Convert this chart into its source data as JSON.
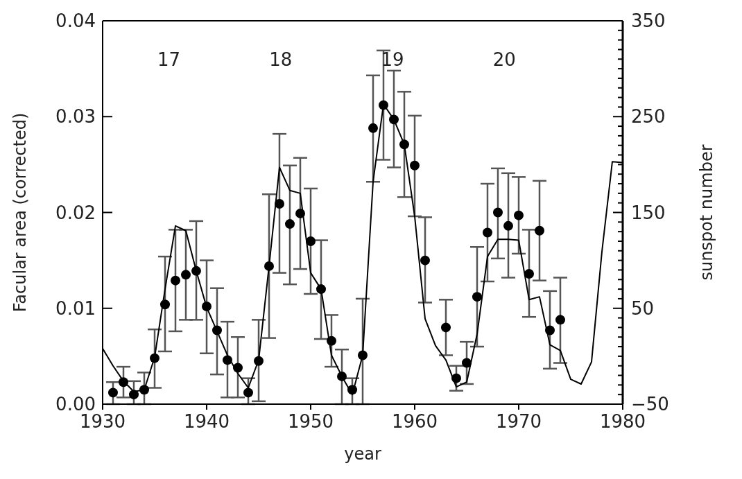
{
  "chart_data": {
    "type": "scatter",
    "xlabel": "year",
    "ylabel": "Facular area (corrected)",
    "y2label": "sunspot number",
    "xlim": [
      1930,
      1980
    ],
    "xticks": [
      1930,
      1940,
      1950,
      1960,
      1970,
      1980
    ],
    "ylim": [
      0,
      0.04
    ],
    "yticks": [
      {
        "value": 0,
        "label": "0.00"
      },
      {
        "value": 0.01,
        "label": "0.01"
      },
      {
        "value": 0.02,
        "label": "0.02"
      },
      {
        "value": 0.03,
        "label": "0.03"
      },
      {
        "value": 0.04,
        "label": "0.04"
      }
    ],
    "y2lim": [
      -50,
      350
    ],
    "y2ticks": [
      {
        "value": -50,
        "label": "−50"
      },
      {
        "value": -40,
        "label": null
      },
      {
        "value": -30,
        "label": null
      },
      {
        "value": -20,
        "label": null
      },
      {
        "value": -10,
        "label": null
      },
      {
        "value": 0,
        "label": null
      },
      {
        "value": 10,
        "label": null
      },
      {
        "value": 20,
        "label": null
      },
      {
        "value": 30,
        "label": null
      },
      {
        "value": 40,
        "label": null
      },
      50,
      {
        "value": 60,
        "label": null
      },
      {
        "value": 70,
        "label": null
      },
      {
        "value": 80,
        "label": null
      },
      {
        "value": 90,
        "label": null
      },
      {
        "value": 100,
        "label": null
      },
      {
        "value": 110,
        "label": null
      },
      {
        "value": 120,
        "label": null
      },
      {
        "value": 130,
        "label": null
      },
      {
        "value": 140,
        "label": null
      },
      150,
      {
        "value": 160,
        "label": null
      },
      {
        "value": 170,
        "label": null
      },
      {
        "value": 180,
        "label": null
      },
      {
        "value": 190,
        "label": null
      },
      {
        "value": 200,
        "label": null
      },
      {
        "value": 210,
        "label": null
      },
      {
        "value": 220,
        "label": null
      },
      {
        "value": 230,
        "label": null
      },
      {
        "value": 240,
        "label": null
      },
      250,
      {
        "value": 260,
        "label": null
      },
      {
        "value": 270,
        "label": null
      },
      {
        "value": 280,
        "label": null
      },
      {
        "value": 290,
        "label": null
      },
      {
        "value": 300,
        "label": null
      },
      {
        "value": 310,
        "label": null
      },
      {
        "value": 320,
        "label": null
      },
      {
        "value": 330,
        "label": null
      },
      {
        "value": 340,
        "label": null
      },
      350
    ],
    "marker": "circle",
    "annotations": [
      "17",
      "18",
      "19",
      "20"
    ],
    "series": [
      {
        "color": "#000000",
        "x": [
          1931,
          1932,
          1933,
          1934,
          1935,
          1936,
          1937,
          1938,
          1939,
          1940,
          1941,
          1942,
          1943,
          1944,
          1945,
          1946,
          1947,
          1948,
          1949,
          1950,
          1951,
          1952,
          1953,
          1954,
          1955,
          1956,
          1957,
          1958,
          1959,
          1960,
          1961,
          1963,
          1964,
          1965,
          1966,
          1967,
          1968,
          1969,
          1970,
          1971,
          1972,
          1973,
          1974
        ],
        "values": [
          0.0012,
          0.0023,
          0.001,
          0.0015,
          0.0048,
          0.0104,
          0.0129,
          0.0135,
          0.0139,
          0.0102,
          0.0077,
          0.0046,
          0.0038,
          0.0012,
          0.0045,
          0.0144,
          0.0209,
          0.0188,
          0.0199,
          0.017,
          0.012,
          0.0066,
          0.0029,
          0.0015,
          0.0051,
          0.0288,
          0.0312,
          0.0297,
          0.0271,
          0.0249,
          0.015,
          0.008,
          0.0027,
          0.0043,
          0.0112,
          0.0179,
          0.02,
          0.0186,
          0.0197,
          0.0136,
          0.0181,
          0.0077,
          0.0088
        ],
        "errors": [
          [
            0,
            0.0023
          ],
          [
            0.0007,
            0.0039
          ],
          [
            0,
            0.0024
          ],
          [
            0,
            0.0033
          ],
          [
            0.0017,
            0.0078
          ],
          [
            0.0055,
            0.0154
          ],
          [
            0.0076,
            0.0182
          ],
          [
            0.0088,
            0.0182
          ],
          [
            0.0088,
            0.0191
          ],
          [
            0.0053,
            0.015
          ],
          [
            0.0031,
            0.0121
          ],
          [
            0.0007,
            0.0086
          ],
          [
            0.0007,
            0.007
          ],
          [
            0,
            0.0027
          ],
          [
            0.0003,
            0.0088
          ],
          [
            0.0069,
            0.0219
          ],
          [
            0.0137,
            0.0282
          ],
          [
            0.0125,
            0.0249
          ],
          [
            0.0141,
            0.0257
          ],
          [
            0.0115,
            0.0225
          ],
          [
            0.0068,
            0.0171
          ],
          [
            0.0039,
            0.0093
          ],
          [
            0,
            0.0057
          ],
          [
            0,
            0.0027
          ],
          [
            0,
            0.011
          ],
          [
            0.0232,
            0.0343
          ],
          [
            0.0255,
            0.0369
          ],
          [
            0.0247,
            0.0348
          ],
          [
            0.0216,
            0.0326
          ],
          [
            0.0196,
            0.0301
          ],
          [
            0.0106,
            0.0195
          ],
          [
            0.0051,
            0.0109
          ],
          [
            0.0014,
            0.004
          ],
          [
            0.0021,
            0.0065
          ],
          [
            0.006,
            0.0164
          ],
          [
            0.0128,
            0.023
          ],
          [
            0.0152,
            0.0246
          ],
          [
            0.0132,
            0.0241
          ],
          [
            0.0157,
            0.0237
          ],
          [
            0.0091,
            0.0182
          ],
          [
            0.0129,
            0.0233
          ],
          [
            0.0037,
            0.0118
          ],
          [
            0.0043,
            0.0132
          ]
        ]
      },
      {
        "type": "line",
        "axis": "y2",
        "color": "#000000",
        "marker": "none",
        "x": [
          1930,
          1931,
          1932,
          1933,
          1934,
          1935,
          1936,
          1937,
          1938,
          1939,
          1940,
          1941,
          1942,
          1943,
          1944,
          1945,
          1946,
          1947,
          1948,
          1949,
          1950,
          1951,
          1952,
          1953,
          1954,
          1955,
          1956,
          1957,
          1958,
          1959,
          1960,
          1961,
          1962,
          1963,
          1964,
          1965,
          1966,
          1967,
          1968,
          1969,
          1970,
          1971,
          1972,
          1973,
          1974,
          1975,
          1976,
          1977,
          1978,
          1979,
          1980
        ],
        "values": [
          8,
          -10,
          -26,
          -37,
          -35,
          -1,
          70,
          136,
          131,
          89,
          51,
          26,
          1,
          -18,
          -33,
          -4,
          94,
          197,
          173,
          170,
          87,
          70,
          1,
          -21,
          -40,
          1,
          182,
          263,
          247,
          221,
          146,
          39,
          11,
          -4,
          -32,
          -27,
          23,
          104,
          122,
          122,
          121,
          59,
          62,
          12,
          6,
          -24,
          -29,
          -6,
          109,
          203,
          202
        ]
      }
    ]
  }
}
